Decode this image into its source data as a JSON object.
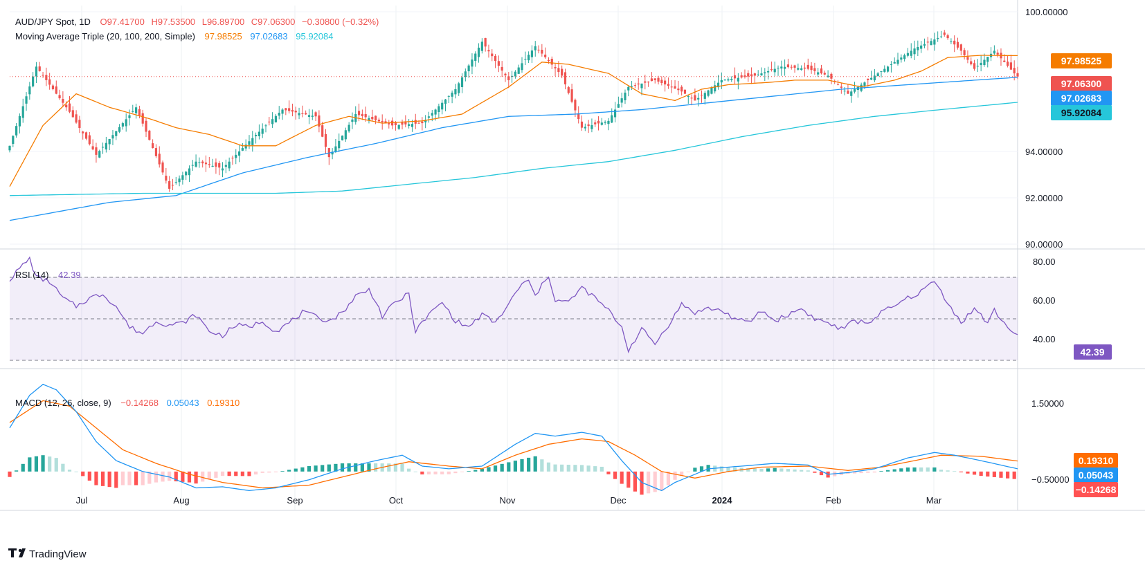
{
  "header": {
    "symbol": "AUD/JPY Spot, 1D",
    "ohlc": {
      "open": "O97.41700",
      "high": "H97.53500",
      "low": "L96.89700",
      "close": "C97.06300",
      "change": "−0.30800 (−0.32%)"
    }
  },
  "ma_legend": {
    "label": "Moving Average Triple (20, 100, 200, Simple)",
    "v20": "97.98525",
    "v100": "97.02683",
    "v200": "95.92084"
  },
  "rsi_legend": {
    "label": "RSI (14)",
    "value": "42.39"
  },
  "macd_legend": {
    "label": "MACD (12, 26, close, 9)",
    "hist": "−0.14268",
    "macd": "0.05043",
    "signal": "0.19310"
  },
  "price_badges": {
    "ma20": "97.98525",
    "close": "97.06300",
    "ma100": "97.02683",
    "ma200": "95.92084"
  },
  "rsi_badge": "42.39",
  "macd_badges": {
    "signal": "0.19310",
    "macd": "0.05043",
    "hist": "−0.14268"
  },
  "watermark": "TradingView",
  "colors": {
    "up": "#26a69a",
    "down": "#ef5350",
    "ma20": "#f57c00",
    "ma100": "#2196f3",
    "ma200": "#26c6da",
    "rsi": "#7e57c2",
    "macd": "#2196f3",
    "signal": "#ff6d00",
    "hist_up_strong": "#26a69a",
    "hist_up_weak": "#b2dfdb",
    "hist_down_strong": "#ff5252",
    "hist_down_weak": "#ffcdd2"
  },
  "chart_data": [
    {
      "type": "candlestick",
      "title": "AUD/JPY Spot, 1D",
      "y_ticks": [
        "100.00000",
        "94.00000",
        "92.00000",
        "90.00000"
      ],
      "ylim": [
        89.5,
        100.2
      ],
      "x_ticks": [
        "Jul",
        "Aug",
        "Sep",
        "Oct",
        "Nov",
        "Dec",
        "2024",
        "Feb",
        "Mar"
      ],
      "candle_series": [
        {
          "name": "AUD/JPY",
          "key_points": [
            [
              0,
              94.0
            ],
            [
              8,
              97.5
            ],
            [
              18,
              95.5
            ],
            [
              26,
              93.6
            ],
            [
              38,
              95.7
            ],
            [
              48,
              92.1
            ],
            [
              56,
              93.3
            ],
            [
              64,
              93.0
            ],
            [
              72,
              94.2
            ],
            [
              82,
              95.6
            ],
            [
              92,
              95.3
            ],
            [
              96,
              93.5
            ],
            [
              104,
              95.4
            ],
            [
              115,
              94.9
            ],
            [
              124,
              95.0
            ],
            [
              134,
              96.5
            ],
            [
              142,
              98.6
            ],
            [
              150,
              96.9
            ],
            [
              158,
              98.4
            ],
            [
              166,
              97.1
            ],
            [
              172,
              94.8
            ],
            [
              180,
              95.1
            ],
            [
              186,
              96.6
            ],
            [
              194,
              96.9
            ],
            [
              202,
              96.4
            ],
            [
              206,
              96.0
            ],
            [
              214,
              96.9
            ],
            [
              224,
              97.1
            ],
            [
              232,
              97.5
            ],
            [
              240,
              97.4
            ],
            [
              246,
              97.1
            ],
            [
              252,
              96.3
            ],
            [
              262,
              97.3
            ],
            [
              272,
              98.3
            ],
            [
              281,
              98.9
            ],
            [
              286,
              98.2
            ],
            [
              290,
              97.4
            ],
            [
              296,
              98.2
            ],
            [
              302,
              97.2
            ],
            [
              303,
              97.06
            ]
          ]
        }
      ],
      "series": [
        {
          "name": "MA 20",
          "last": 97.98525,
          "key_points": [
            [
              0,
              92.2
            ],
            [
              10,
              94.9
            ],
            [
              20,
              96.3
            ],
            [
              30,
              95.7
            ],
            [
              42,
              95.2
            ],
            [
              50,
              94.8
            ],
            [
              60,
              94.5
            ],
            [
              70,
              94.0
            ],
            [
              80,
              94.0
            ],
            [
              92,
              94.9
            ],
            [
              102,
              95.3
            ],
            [
              112,
              95.0
            ],
            [
              124,
              95.1
            ],
            [
              136,
              95.4
            ],
            [
              150,
              96.6
            ],
            [
              160,
              97.7
            ],
            [
              168,
              97.6
            ],
            [
              180,
              97.2
            ],
            [
              190,
              96.3
            ],
            [
              200,
              96.0
            ],
            [
              208,
              96.5
            ],
            [
              216,
              96.7
            ],
            [
              228,
              96.8
            ],
            [
              236,
              96.9
            ],
            [
              246,
              96.9
            ],
            [
              256,
              96.6
            ],
            [
              266,
              96.9
            ],
            [
              274,
              97.3
            ],
            [
              282,
              97.9
            ],
            [
              292,
              98.0
            ],
            [
              303,
              97.98525
            ]
          ]
        },
        {
          "name": "MA 100",
          "last": 97.02683,
          "key_points": [
            [
              0,
              90.7
            ],
            [
              30,
              91.5
            ],
            [
              50,
              91.8
            ],
            [
              70,
              92.8
            ],
            [
              90,
              93.5
            ],
            [
              110,
              94.1
            ],
            [
              130,
              94.8
            ],
            [
              150,
              95.3
            ],
            [
              170,
              95.4
            ],
            [
              190,
              95.6
            ],
            [
              210,
              95.9
            ],
            [
              230,
              96.2
            ],
            [
              250,
              96.5
            ],
            [
              270,
              96.7
            ],
            [
              290,
              96.9
            ],
            [
              303,
              97.02683
            ]
          ]
        },
        {
          "name": "MA 200",
          "last": 95.92084,
          "key_points": [
            [
              0,
              91.8
            ],
            [
              40,
              91.9
            ],
            [
              60,
              91.9
            ],
            [
              80,
              91.9
            ],
            [
              100,
              92.0
            ],
            [
              120,
              92.3
            ],
            [
              140,
              92.6
            ],
            [
              160,
              93.0
            ],
            [
              180,
              93.3
            ],
            [
              200,
              93.8
            ],
            [
              220,
              94.4
            ],
            [
              240,
              94.9
            ],
            [
              260,
              95.3
            ],
            [
              280,
              95.6
            ],
            [
              303,
              95.92084
            ]
          ]
        }
      ]
    },
    {
      "type": "line",
      "title": "RSI (14)",
      "y_ticks": [
        "80.00",
        "60.00",
        "40.00"
      ],
      "levels": [
        70,
        50,
        30
      ],
      "ylim": [
        27,
        83
      ],
      "series": [
        {
          "name": "RSI",
          "last": 42.39,
          "key_points": [
            [
              0,
              69
            ],
            [
              4,
              76
            ],
            [
              6,
              79
            ],
            [
              8,
              70
            ],
            [
              12,
              68
            ],
            [
              16,
              60
            ],
            [
              20,
              56
            ],
            [
              24,
              60
            ],
            [
              28,
              62
            ],
            [
              32,
              56
            ],
            [
              36,
              46
            ],
            [
              40,
              43
            ],
            [
              44,
              49
            ],
            [
              48,
              47
            ],
            [
              52,
              48
            ],
            [
              56,
              52
            ],
            [
              60,
              44
            ],
            [
              64,
              42
            ],
            [
              68,
              47
            ],
            [
              72,
              46
            ],
            [
              76,
              49
            ],
            [
              80,
              44
            ],
            [
              84,
              48
            ],
            [
              88,
              53
            ],
            [
              92,
              51
            ],
            [
              96,
              49
            ],
            [
              100,
              53
            ],
            [
              104,
              61
            ],
            [
              108,
              64
            ],
            [
              110,
              59
            ],
            [
              112,
              51
            ],
            [
              116,
              58
            ],
            [
              120,
              62
            ],
            [
              122,
              44
            ],
            [
              126,
              52
            ],
            [
              130,
              58
            ],
            [
              134,
              49
            ],
            [
              138,
              46
            ],
            [
              142,
              52
            ],
            [
              146,
              48
            ],
            [
              150,
              57
            ],
            [
              154,
              67
            ],
            [
              156,
              68
            ],
            [
              158,
              61
            ],
            [
              162,
              71
            ],
            [
              164,
              59
            ],
            [
              168,
              58
            ],
            [
              172,
              65
            ],
            [
              176,
              60
            ],
            [
              180,
              54
            ],
            [
              184,
              46
            ],
            [
              186,
              35
            ],
            [
              190,
              45
            ],
            [
              194,
              38
            ],
            [
              198,
              47
            ],
            [
              202,
              57
            ],
            [
              206,
              53
            ],
            [
              210,
              55
            ],
            [
              214,
              54
            ],
            [
              218,
              50
            ],
            [
              222,
              48
            ],
            [
              226,
              54
            ],
            [
              230,
              49
            ],
            [
              234,
              52
            ],
            [
              238,
              55
            ],
            [
              242,
              50
            ],
            [
              246,
              48
            ],
            [
              250,
              45
            ],
            [
              254,
              49
            ],
            [
              258,
              48
            ],
            [
              262,
              53
            ],
            [
              266,
              56
            ],
            [
              270,
              60
            ],
            [
              274,
              63
            ],
            [
              276,
              66
            ],
            [
              278,
              68
            ],
            [
              282,
              58
            ],
            [
              286,
              48
            ],
            [
              290,
              55
            ],
            [
              294,
              48
            ],
            [
              296,
              54
            ],
            [
              300,
              46
            ],
            [
              303,
              42.39
            ]
          ]
        }
      ]
    },
    {
      "type": "bar+line",
      "title": "MACD (12, 26, close, 9)",
      "y_ticks": [
        "1.50000",
        "−0.50000"
      ],
      "ylim": [
        -0.7,
        1.8
      ],
      "series": [
        {
          "name": "MACD",
          "last": 0.05043,
          "key_points": [
            [
              0,
              0.8
            ],
            [
              6,
              1.4
            ],
            [
              10,
              1.6
            ],
            [
              14,
              1.5
            ],
            [
              20,
              1.1
            ],
            [
              26,
              0.55
            ],
            [
              32,
              0.2
            ],
            [
              40,
              0.0
            ],
            [
              48,
              -0.1
            ],
            [
              56,
              -0.3
            ],
            [
              64,
              -0.28
            ],
            [
              72,
              -0.35
            ],
            [
              80,
              -0.3
            ],
            [
              90,
              -0.15
            ],
            [
              100,
              0.05
            ],
            [
              110,
              0.2
            ],
            [
              118,
              0.3
            ],
            [
              124,
              0.1
            ],
            [
              132,
              0.05
            ],
            [
              142,
              0.1
            ],
            [
              152,
              0.5
            ],
            [
              158,
              0.7
            ],
            [
              164,
              0.65
            ],
            [
              172,
              0.72
            ],
            [
              178,
              0.65
            ],
            [
              184,
              0.2
            ],
            [
              190,
              -0.2
            ],
            [
              196,
              -0.35
            ],
            [
              200,
              -0.2
            ],
            [
              210,
              0.05
            ],
            [
              220,
              0.1
            ],
            [
              230,
              0.15
            ],
            [
              240,
              0.12
            ],
            [
              246,
              -0.05
            ],
            [
              252,
              -0.02
            ],
            [
              260,
              0.05
            ],
            [
              270,
              0.25
            ],
            [
              278,
              0.35
            ],
            [
              284,
              0.3
            ],
            [
              292,
              0.2
            ],
            [
              303,
              0.05
            ]
          ]
        },
        {
          "name": "Signal",
          "last": 0.1931,
          "key_points": [
            [
              0,
              0.9
            ],
            [
              10,
              1.3
            ],
            [
              18,
              1.2
            ],
            [
              26,
              0.8
            ],
            [
              34,
              0.4
            ],
            [
              44,
              0.15
            ],
            [
              54,
              -0.05
            ],
            [
              64,
              -0.2
            ],
            [
              76,
              -0.3
            ],
            [
              90,
              -0.25
            ],
            [
              100,
              -0.1
            ],
            [
              110,
              0.05
            ],
            [
              120,
              0.18
            ],
            [
              132,
              0.1
            ],
            [
              142,
              0.05
            ],
            [
              152,
              0.3
            ],
            [
              162,
              0.5
            ],
            [
              172,
              0.6
            ],
            [
              180,
              0.55
            ],
            [
              188,
              0.3
            ],
            [
              196,
              0.0
            ],
            [
              206,
              -0.12
            ],
            [
              216,
              0.0
            ],
            [
              226,
              0.08
            ],
            [
              240,
              0.1
            ],
            [
              252,
              0.02
            ],
            [
              262,
              0.08
            ],
            [
              272,
              0.2
            ],
            [
              280,
              0.3
            ],
            [
              292,
              0.28
            ],
            [
              303,
              0.1931
            ]
          ]
        }
      ]
    }
  ]
}
